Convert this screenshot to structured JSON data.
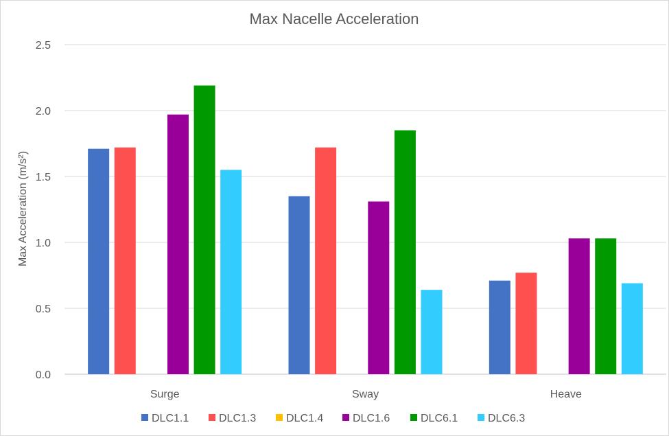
{
  "chart_data": {
    "type": "bar",
    "title": "Max Nacelle Acceleration",
    "xlabel": "",
    "ylabel": "Max Acceleration (m/s²)",
    "ylim": [
      0,
      2.5
    ],
    "yticks": [
      "0.0",
      "0.5",
      "1.0",
      "1.5",
      "2.0",
      "2.5"
    ],
    "categories": [
      "Surge",
      "Sway",
      "Heave"
    ],
    "grid": true,
    "legend_position": "bottom",
    "series": [
      {
        "name": "DLC1.1",
        "color": "#4472c4",
        "values": [
          1.71,
          1.35,
          0.71
        ]
      },
      {
        "name": "DLC1.3",
        "color": "#ff5050",
        "values": [
          1.72,
          1.72,
          0.77
        ]
      },
      {
        "name": "DLC1.4",
        "color": "#ffc000",
        "values": [
          0,
          0,
          0
        ]
      },
      {
        "name": "DLC1.6",
        "color": "#990099",
        "values": [
          1.97,
          1.31,
          1.03
        ]
      },
      {
        "name": "DLC6.1",
        "color": "#009900",
        "values": [
          2.19,
          1.85,
          1.03
        ]
      },
      {
        "name": "DLC6.3",
        "color": "#33ccff",
        "values": [
          1.55,
          0.64,
          0.69
        ]
      }
    ]
  }
}
